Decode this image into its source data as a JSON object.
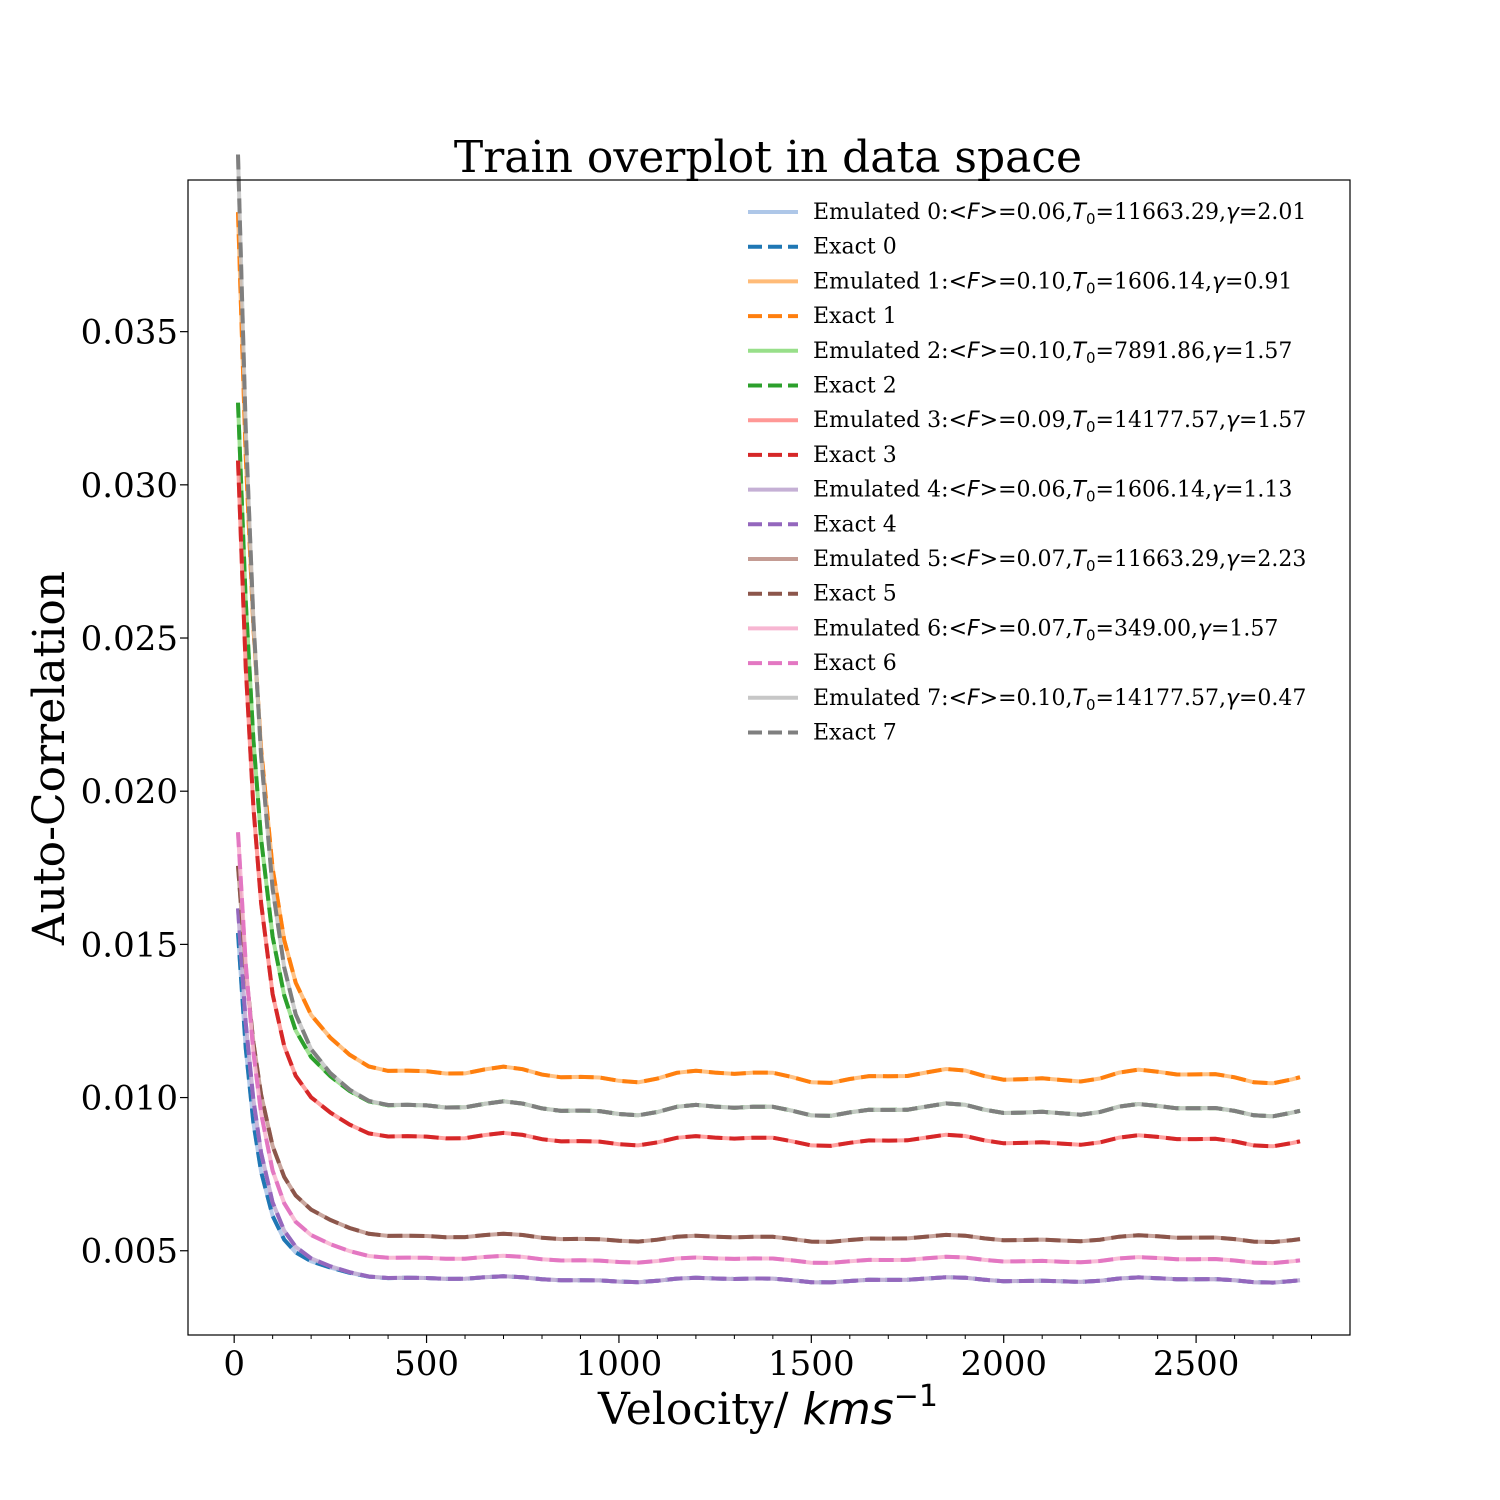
{
  "chart_data": {
    "type": "line",
    "title": "Train overplot in data space",
    "xlabel_text": "Velocity/ ",
    "xlabel_math_base": "kms",
    "xlabel_math_exp": "−1",
    "ylabel": "Auto-Correlation",
    "xlim": [
      -120,
      2900
    ],
    "ylim": [
      0.00225,
      0.03995
    ],
    "x_ticks": [
      0,
      500,
      1000,
      1500,
      2000,
      2500
    ],
    "x_tick_labels": [
      "0",
      "500",
      "1000",
      "1500",
      "2000",
      "2500"
    ],
    "y_ticks": [
      0.005,
      0.01,
      0.015,
      0.02,
      0.025,
      0.03,
      0.035
    ],
    "y_tick_labels": [
      "0.005",
      "0.010",
      "0.015",
      "0.020",
      "0.025",
      "0.030",
      "0.035"
    ],
    "grid": false,
    "legend_position": "top-right",
    "x": [
      10,
      30,
      50,
      70,
      100,
      130,
      160,
      200,
      250,
      300,
      350,
      400,
      450,
      500,
      550,
      600,
      650,
      700,
      750,
      800,
      850,
      900,
      950,
      1000,
      1050,
      1100,
      1150,
      1200,
      1250,
      1300,
      1350,
      1400,
      1450,
      1500,
      1550,
      1600,
      1650,
      1700,
      1750,
      1800,
      1850,
      1900,
      1950,
      2000,
      2050,
      2100,
      2150,
      2200,
      2250,
      2300,
      2350,
      2400,
      2450,
      2500,
      2550,
      2600,
      2650,
      2700,
      2750,
      2770
    ],
    "series": [
      {
        "index": 0,
        "plateau": 0.00405,
        "start": 0.0142,
        "k": 45,
        "amp": 1.0,
        "color": "#1f77b4",
        "light": "#aec7e8",
        "emulated_label": "Emulated 0:",
        "params": "=0.06,",
        "t0": "=11663.29,",
        "gamma": "=2.01",
        "exact_label": "Exact 0"
      },
      {
        "index": 1,
        "plateau": 0.0107,
        "start": 0.0358,
        "k": 55,
        "amp": 1.0,
        "color": "#ff7f0e",
        "light": "#ffbb78",
        "emulated_label": "Emulated 1:",
        "params": "=0.10,",
        "t0": "=1606.14,",
        "gamma": "=0.91",
        "exact_label": "Exact 1"
      },
      {
        "index": 2,
        "plateau": 0.0096,
        "start": 0.0299,
        "k": 55,
        "amp": 1.0,
        "color": "#2ca02c",
        "light": "#98df8a",
        "emulated_label": "Emulated 2:",
        "params": "=0.10,",
        "t0": "=7891.86,",
        "gamma": "=1.57",
        "exact_label": "Exact 2"
      },
      {
        "index": 3,
        "plateau": 0.0086,
        "start": 0.0283,
        "k": 50,
        "amp": 1.0,
        "color": "#d62728",
        "light": "#ff9896",
        "emulated_label": "Emulated 3:",
        "params": "=0.09,",
        "t0": "=14177.57,",
        "gamma": "=1.57",
        "exact_label": "Exact 3"
      },
      {
        "index": 4,
        "plateau": 0.00405,
        "start": 0.015,
        "k": 50,
        "amp": 1.0,
        "color": "#9467bd",
        "light": "#c5b0d5",
        "emulated_label": "Emulated 4:",
        "params": "=0.06,",
        "t0": "=1606.14,",
        "gamma": "=1.13",
        "exact_label": "Exact 4"
      },
      {
        "index": 5,
        "plateau": 0.0054,
        "start": 0.016,
        "k": 55,
        "amp": 1.0,
        "color": "#8c564b",
        "light": "#c49c94",
        "emulated_label": "Emulated 5:",
        "params": "=0.07,",
        "t0": "=11663.29,",
        "gamma": "=2.23",
        "exact_label": "Exact 5"
      },
      {
        "index": 6,
        "plateau": 0.0047,
        "start": 0.0173,
        "k": 50,
        "amp": 1.0,
        "color": "#e377c2",
        "light": "#f7b6d2",
        "emulated_label": "Emulated 6:",
        "params": "=0.07,",
        "t0": "=349.00,",
        "gamma": "=1.57",
        "exact_label": "Exact 6"
      },
      {
        "index": 7,
        "plateau": 0.0096,
        "start": 0.038,
        "k": 55,
        "amp": 1.0,
        "color": "#7f7f7f",
        "light": "#c7c7c7",
        "emulated_label": "Emulated 7:",
        "params": "=0.10,",
        "t0": "=14177.57,",
        "gamma": "=0.47",
        "exact_label": "Exact 7"
      }
    ],
    "legend_math": {
      "F_open": "<F>",
      "T": "T",
      "T_sub": "0",
      "gamma_sym": "γ"
    }
  }
}
